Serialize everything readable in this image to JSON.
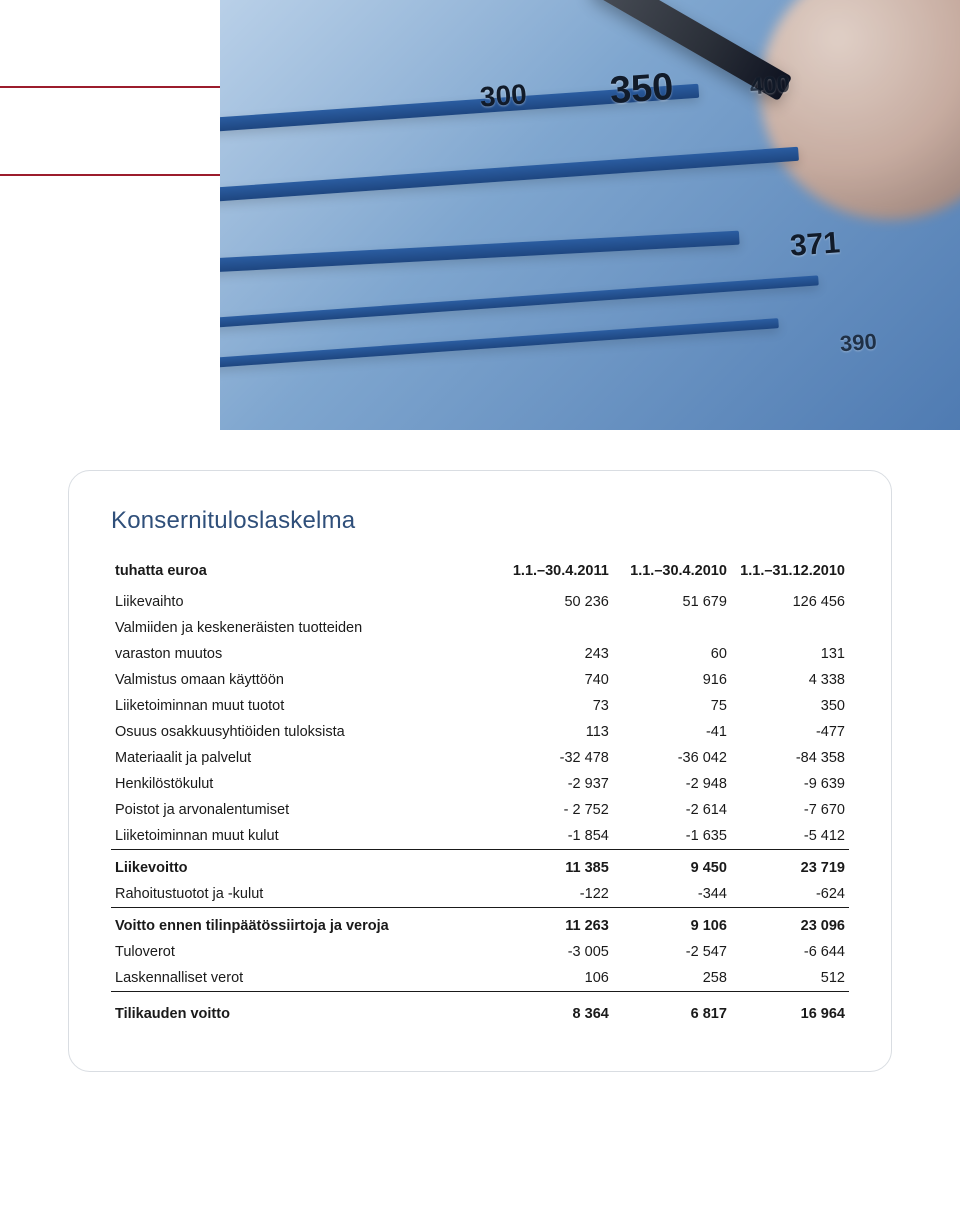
{
  "hero": {
    "bg_gradient": [
      "#b9d0e8",
      "#7fa6cf",
      "#4f7bb2"
    ],
    "bar_color": "#1e4680",
    "labels": [
      "300",
      "350",
      "400",
      "371",
      "390"
    ],
    "label_color": "#111b2a"
  },
  "card": {
    "title": "Konsernituloslaskelma",
    "title_color": "#2f4f7a",
    "title_fontsize": 24,
    "border_color": "#d9dde2",
    "border_radius": 22,
    "text_color": "#1a1a1a",
    "row_fontsize": 14.5
  },
  "table": {
    "columns": [
      "tuhatta euroa",
      "1.1.–30.4.2011",
      "1.1.–30.4.2010",
      "1.1.–31.12.2010"
    ],
    "sections": [
      {
        "rows": [
          {
            "label": "Liikevaihto",
            "values": [
              "50 236",
              "51 679",
              "126 456"
            ]
          },
          {
            "label": "Valmiiden ja keskeneräisten tuotteiden",
            "values": [
              "",
              "",
              ""
            ]
          },
          {
            "label": "varaston muutos",
            "values": [
              "243",
              "60",
              "131"
            ]
          },
          {
            "label": "Valmistus omaan käyttöön",
            "values": [
              "740",
              "916",
              "4 338"
            ]
          },
          {
            "label": "Liiketoiminnan muut tuotot",
            "values": [
              "73",
              "75",
              "350"
            ]
          },
          {
            "label": "Osuus osakkuusyhtiöiden tuloksista",
            "values": [
              "113",
              "-41",
              "-477"
            ]
          },
          {
            "label": "Materiaalit ja palvelut",
            "values": [
              "-32 478",
              "-36 042",
              "-84 358"
            ]
          },
          {
            "label": "Henkilöstökulut",
            "values": [
              "-2 937",
              "-2 948",
              "-9 639"
            ]
          },
          {
            "label": "Poistot ja arvonalentumiset",
            "values": [
              "- 2 752",
              "-2 614",
              "-7 670"
            ]
          },
          {
            "label": "Liiketoiminnan muut kulut",
            "values": [
              "-1 854",
              "-1 635",
              "-5 412"
            ]
          }
        ]
      },
      {
        "rule_above": true,
        "rows": [
          {
            "label": "Liikevoitto",
            "values": [
              "11 385",
              "9 450",
              "23 719"
            ],
            "bold": true
          },
          {
            "label": "Rahoitustuotot ja -kulut",
            "values": [
              "-122",
              "-344",
              "-624"
            ]
          }
        ]
      },
      {
        "rule_above": true,
        "rows": [
          {
            "label": "Voitto ennen tilinpäätössiirtoja ja veroja",
            "values": [
              "11 263",
              "9 106",
              "23 096"
            ],
            "bold": true
          },
          {
            "label": "Tuloverot",
            "values": [
              "-3 005",
              "-2 547",
              "-6 644"
            ]
          },
          {
            "label": "Laskennalliset verot",
            "values": [
              "106",
              "258",
              "512"
            ]
          }
        ]
      },
      {
        "rule_above": true,
        "rows": [
          {
            "label": "Tilikauden voitto",
            "values": [
              "8 364",
              "6 817",
              "16 964"
            ],
            "bold": true
          }
        ]
      }
    ]
  }
}
